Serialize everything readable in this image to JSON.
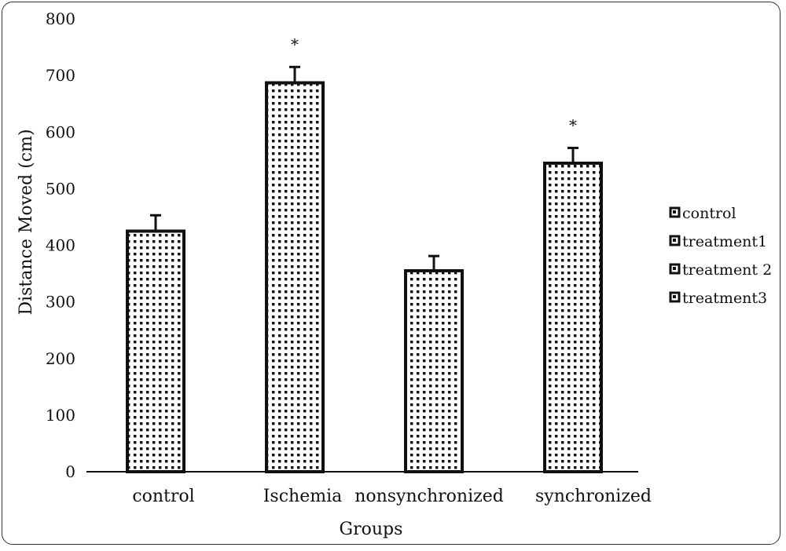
{
  "chart_data": {
    "type": "bar",
    "categories": [
      "control",
      "Ischemia",
      "nonsynchronized",
      "synchronized"
    ],
    "values": [
      425,
      687,
      355,
      545
    ],
    "errors": [
      28,
      28,
      26,
      27
    ],
    "significance": [
      "",
      "*",
      "",
      "*"
    ],
    "xlabel": "Groups",
    "ylabel": "Distance Moved (cm)",
    "ylim": [
      0,
      800
    ],
    "yticks": [
      0,
      100,
      200,
      300,
      400,
      500,
      600,
      700,
      800
    ],
    "grid": false,
    "legend": {
      "placement": "right",
      "entries": [
        "control",
        "treatment1",
        "treatment 2",
        "treatment3"
      ]
    },
    "bar_pattern": "dotted",
    "colors": {
      "bar_fill": "#ffffff",
      "bar_dots": "#111111",
      "bar_edge": "#111111"
    }
  }
}
